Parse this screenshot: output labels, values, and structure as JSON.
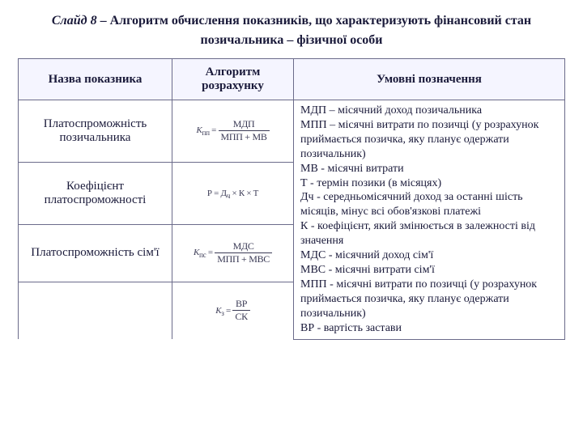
{
  "colors": {
    "text": "#1a1a3a",
    "border": "#6b6b8a",
    "header_bg": "#f5f5ff",
    "background": "#ffffff",
    "formula": "#3a3a55"
  },
  "title_prefix": "Слайд 8",
  "title_rest": " – Алгоритм обчислення показників, що характеризують фінансовий стан позичальника – фізичної особи",
  "headers": {
    "name": "Назва показника",
    "alg": "Алгоритм розрахунку",
    "notes": "Умовні позначення"
  },
  "rows": [
    {
      "name": "Платоспроможність позичальника",
      "formula": {
        "left": "K",
        "sub": "пп",
        "num": "МДП",
        "den": "МПП + МВ"
      }
    },
    {
      "name": "Коефіцієнт платоспроможності",
      "formula_text": "Р = Д<sub>ч</sub> × К × Т"
    },
    {
      "name": "Платоспроможність сім'ї",
      "formula": {
        "left": "K",
        "sub": "пс",
        "num": "МДС",
        "den": "МПП + МВС"
      }
    },
    {
      "name": "",
      "formula": {
        "left": "K",
        "sub": "з",
        "num": "ВР",
        "den": "СК"
      }
    }
  ],
  "notes_lines": [
    "МДП – місячний доход позичальника",
    "МПП – місячні витрати по позичці (у розрахунок приймається позичка, яку планує одержати позичальник)",
    "МВ - місячні витрати",
    "Т - термін позики (в місяцях)",
    "Дч - середньомісячний доход за останні шість місяців, мінус всі обов'язкові платежі",
    "К - коефіцієнт, який змінюється в залежності від значення",
    "МДС - місячний доход сім'ї",
    "МВС - місячні витрати сім'ї",
    "МПП - місячні витрати по позичці (у розрахунок приймається позичка, яку планує одержати позичальник)",
    "ВР - вартість застави"
  ]
}
